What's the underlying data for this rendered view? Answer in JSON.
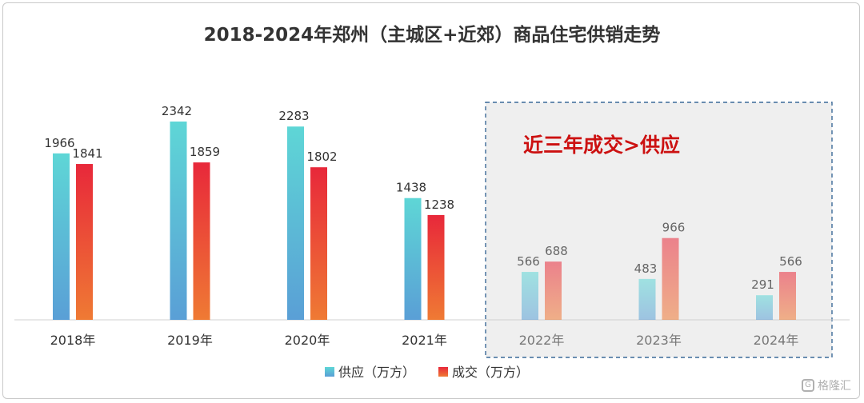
{
  "chart_data": {
    "type": "bar",
    "title": "2018-2024年郑州（主城区+近郊）商品住宅供销走势",
    "categories": [
      "2018年",
      "2019年",
      "2020年",
      "2021年",
      "2022年",
      "2023年",
      "2024年"
    ],
    "series": [
      {
        "name": "供应（万方）",
        "values": [
          1966,
          2342,
          2283,
          1438,
          566,
          483,
          291
        ],
        "color_top": "#5ed6d6",
        "color_bottom": "#5a9fd6"
      },
      {
        "name": "成交（万方）",
        "values": [
          1841,
          1859,
          1802,
          1238,
          688,
          966,
          566
        ],
        "color_top": "#e8283a",
        "color_bottom": "#ef7a34"
      }
    ],
    "ylim": [
      0,
      2342
    ],
    "grid": false,
    "legend_position": "bottom",
    "annotation": {
      "text": "近三年成交>供应",
      "color": "#cc1111",
      "highlight_categories": [
        "2022年",
        "2023年",
        "2024年"
      ]
    }
  },
  "watermark": {
    "logo": "G",
    "text": "格隆汇"
  }
}
